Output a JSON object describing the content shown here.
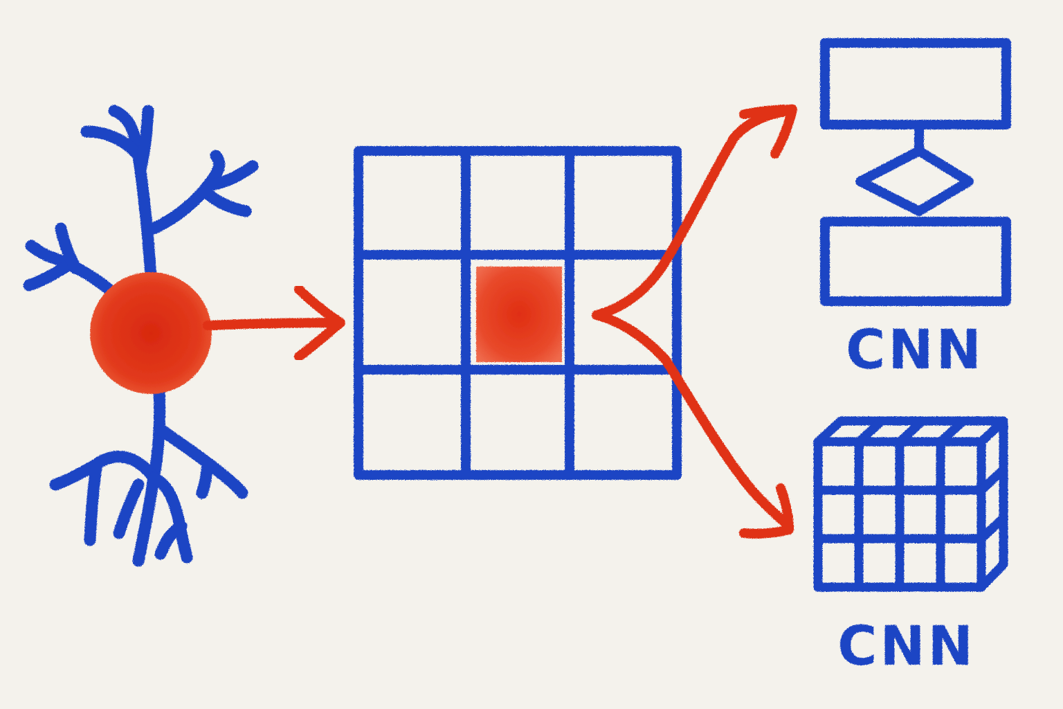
{
  "diagram": {
    "colors": {
      "background": "#f4f2ec",
      "blue": "#1f44c4",
      "red": "#e03218"
    },
    "neuron": {
      "icon": "neuron-icon"
    },
    "grid": {
      "rows": 3,
      "cols": 3,
      "highlighted_cell": "center"
    },
    "outputs": [
      {
        "icon": "flowchart-icon",
        "label": "CNN"
      },
      {
        "icon": "cube-grid-icon",
        "label": "CNN"
      }
    ]
  }
}
